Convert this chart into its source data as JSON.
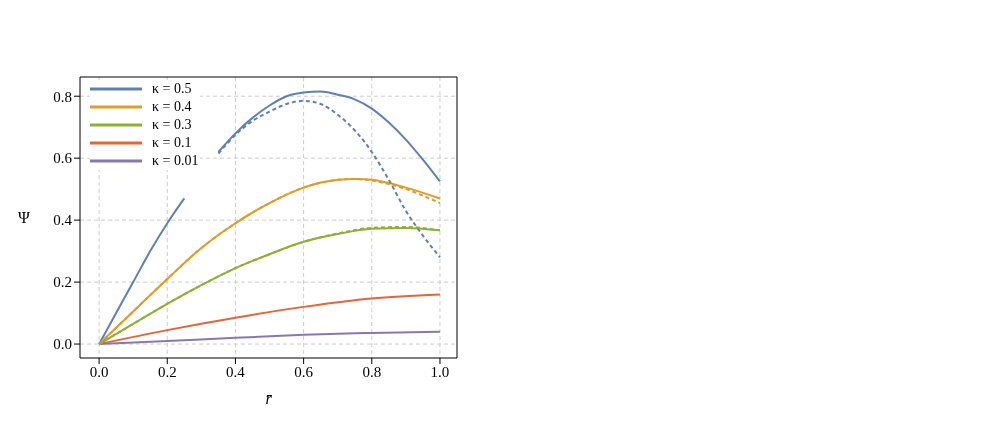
{
  "chart_data": {
    "type": "line",
    "xlabel": "r̄",
    "ylabel": "Ψ",
    "xlim": [
      -0.056,
      1.05
    ],
    "ylim": [
      -0.045,
      0.862
    ],
    "xticks": [
      {
        "value": 0,
        "label": "0.0"
      },
      0.2,
      0.4,
      0.6,
      0.8,
      {
        "value": 1,
        "label": "1.0"
      }
    ],
    "yticks": [
      {
        "value": 0,
        "label": "0.0"
      },
      0.2,
      0.4,
      0.6,
      0.8
    ],
    "grid": true,
    "legend": "top left",
    "series": [
      {
        "name": "κ = 0.5",
        "color": "#5e81b5",
        "line_style": "solid",
        "x": [
          0,
          0.05,
          0.1,
          0.15,
          0.2,
          0.25,
          0.3,
          0.35,
          0.4,
          0.45,
          0.5,
          0.55,
          0.6,
          0.65,
          0.7,
          0.75,
          0.8,
          0.85,
          0.9,
          0.95,
          1.0
        ],
        "values": [
          0,
          0.1,
          0.2,
          0.3,
          0.39,
          0.47,
          null,
          0.62,
          0.68,
          0.73,
          0.77,
          0.8,
          0.812,
          0.815,
          0.805,
          0.79,
          0.76,
          0.715,
          0.66,
          0.595,
          0.525
        ]
      },
      {
        "name": "κ = 0.4",
        "color": "#e19c24",
        "line_style": "solid",
        "x": [
          0,
          0.1,
          0.2,
          0.3,
          0.4,
          0.5,
          0.6,
          0.7,
          0.75,
          0.8,
          0.9,
          1.0
        ],
        "values": [
          0,
          0.105,
          0.21,
          0.31,
          0.39,
          0.455,
          0.505,
          0.53,
          0.533,
          0.53,
          0.505,
          0.47
        ]
      },
      {
        "name": "κ = 0.3",
        "color": "#8fb032",
        "line_style": "solid",
        "x": [
          0,
          0.1,
          0.2,
          0.3,
          0.4,
          0.5,
          0.6,
          0.7,
          0.8,
          0.9,
          1.0
        ],
        "values": [
          0,
          0.065,
          0.13,
          0.19,
          0.245,
          0.29,
          0.33,
          0.355,
          0.372,
          0.375,
          0.367
        ]
      },
      {
        "name": "κ = 0.1",
        "color": "#eb6235",
        "line_style": "solid",
        "x": [
          0,
          0.2,
          0.4,
          0.6,
          0.8,
          1.0
        ],
        "values": [
          0,
          0.045,
          0.085,
          0.12,
          0.147,
          0.16
        ]
      },
      {
        "name": "κ = 0.01",
        "color": "#8778b3",
        "line_style": "solid",
        "x": [
          0,
          0.2,
          0.4,
          0.6,
          0.8,
          1.0
        ],
        "values": [
          0,
          0.01,
          0.02,
          0.03,
          0.036,
          0.04
        ]
      },
      {
        "color": "#5e81b5",
        "line_style": "dashed",
        "x": [
          0.35,
          0.4,
          0.45,
          0.5,
          0.55,
          0.6,
          0.65,
          0.7,
          0.75,
          0.8,
          0.85,
          0.9,
          0.95,
          1.0
        ],
        "values": [
          0.615,
          0.675,
          0.72,
          0.75,
          0.775,
          0.785,
          0.775,
          0.74,
          0.69,
          0.62,
          0.53,
          0.43,
          0.35,
          0.28
        ]
      },
      {
        "color": "#e19c24",
        "line_style": "dashed",
        "x": [
          0,
          0.1,
          0.2,
          0.3,
          0.4,
          0.5,
          0.6,
          0.7,
          0.75,
          0.8,
          0.9,
          1.0
        ],
        "values": [
          0,
          0.105,
          0.21,
          0.31,
          0.39,
          0.455,
          0.505,
          0.53,
          0.533,
          0.528,
          0.5,
          0.455
        ]
      },
      {
        "color": "#8fb032",
        "line_style": "dashed",
        "x": [
          0,
          0.1,
          0.2,
          0.3,
          0.4,
          0.5,
          0.6,
          0.7,
          0.8,
          0.9,
          1.0
        ],
        "values": [
          0,
          0.065,
          0.13,
          0.19,
          0.245,
          0.29,
          0.33,
          0.357,
          0.375,
          0.378,
          0.367
        ]
      }
    ]
  }
}
